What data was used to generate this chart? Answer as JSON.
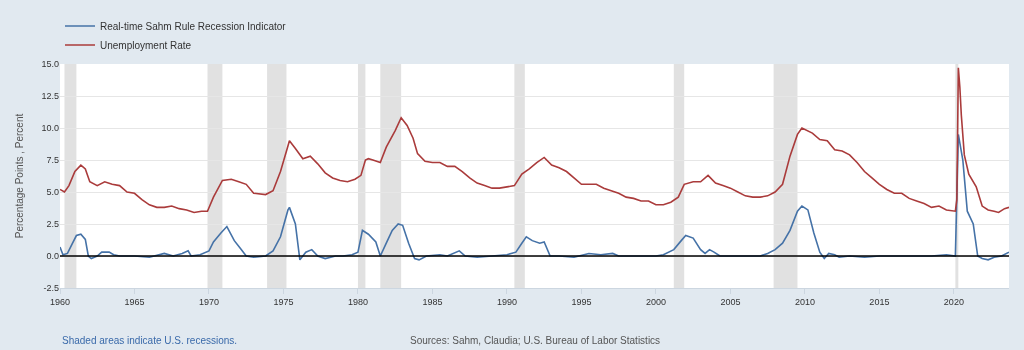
{
  "chart_data": {
    "type": "line",
    "ylabel": "Percentage Points , Percent",
    "xlim": [
      1960,
      2023.7
    ],
    "xticks": [
      1960,
      1965,
      1970,
      1975,
      1980,
      1985,
      1990,
      1995,
      2000,
      2005,
      2010,
      2015,
      2020
    ],
    "ylim": [
      -2.5,
      15
    ],
    "yticks": [
      {
        "value": -2.5,
        "label": "-2.5"
      },
      {
        "value": 0,
        "label": "0.0"
      },
      {
        "value": 2.5,
        "label": "2.5"
      },
      {
        "value": 5,
        "label": "5.0"
      },
      {
        "value": 7.5,
        "label": "7.5"
      },
      {
        "value": 10,
        "label": "10.0"
      },
      {
        "value": 12.5,
        "label": "12.5"
      },
      {
        "value": 15,
        "label": "15.0"
      }
    ],
    "grid": "y",
    "legend": "top left",
    "marker": "none",
    "line_style": "solid",
    "series": [
      {
        "name": "Real-time Sahm Rule Recession Indicator",
        "color": "#4572a7",
        "x": [
          1960.0,
          1960.2,
          1960.5,
          1960.8,
          1961.1,
          1961.4,
          1961.7,
          1961.9,
          1962.1,
          1962.5,
          1962.8,
          1963.3,
          1963.6,
          1964.0,
          1965.0,
          1966.0,
          1967.0,
          1967.6,
          1968.2,
          1968.6,
          1968.8,
          1969.4,
          1970.0,
          1970.3,
          1970.8,
          1971.2,
          1971.7,
          1972.1,
          1972.5,
          1973.0,
          1973.8,
          1974.3,
          1974.8,
          1975.3,
          1975.4,
          1975.8,
          1976.1,
          1976.5,
          1976.9,
          1977.3,
          1977.8,
          1978.5,
          1979.0,
          1979.6,
          1980.0,
          1980.3,
          1980.7,
          1981.2,
          1981.5,
          1981.9,
          1982.3,
          1982.7,
          1983.0,
          1983.4,
          1983.8,
          1984.1,
          1984.6,
          1985.5,
          1986.0,
          1986.8,
          1987.2,
          1988.0,
          1989.0,
          1990.0,
          1990.6,
          1991.0,
          1991.3,
          1991.7,
          1992.2,
          1992.5,
          1992.9,
          1993.5,
          1994.5,
          1995.5,
          1996.3,
          1997.1,
          1997.5,
          1999.0,
          2000.0,
          2000.5,
          2001.2,
          2001.7,
          2002.0,
          2002.5,
          2003.0,
          2003.3,
          2003.6,
          2003.9,
          2004.3,
          2005.0,
          2006.0,
          2007.0,
          2007.5,
          2008.0,
          2008.5,
          2009.0,
          2009.5,
          2009.8,
          2010.2,
          2010.6,
          2011.0,
          2011.3,
          2011.6,
          2012.0,
          2012.3,
          2013.0,
          2014.0,
          2015.0,
          2016.5,
          2017.5,
          2018.5,
          2019.5,
          2020.1,
          2020.3,
          2020.6,
          2020.9,
          2021.3,
          2021.6,
          2021.9,
          2022.3,
          2022.7,
          2023.2,
          2023.7
        ],
        "values": [
          0.7,
          0.1,
          0.2,
          0.9,
          1.6,
          1.7,
          1.3,
          0.0,
          -0.2,
          0.0,
          0.3,
          0.3,
          0.1,
          0.0,
          0.0,
          -0.1,
          0.2,
          0.0,
          0.2,
          0.4,
          0.0,
          0.1,
          0.4,
          1.1,
          1.8,
          2.3,
          1.2,
          0.6,
          0.0,
          -0.1,
          0.0,
          0.4,
          1.5,
          3.6,
          3.8,
          2.5,
          -0.3,
          0.3,
          0.5,
          0.0,
          -0.2,
          0.0,
          0.0,
          0.1,
          0.3,
          2.0,
          1.7,
          1.1,
          0.0,
          1.0,
          2.0,
          2.5,
          2.4,
          1.0,
          -0.2,
          -0.3,
          0.0,
          0.1,
          0.0,
          0.4,
          0.0,
          -0.1,
          0.0,
          0.1,
          0.3,
          1.0,
          1.5,
          1.2,
          1.0,
          1.1,
          0.0,
          0.0,
          -0.1,
          0.2,
          0.1,
          0.2,
          0.0,
          0.0,
          0.0,
          0.1,
          0.5,
          1.2,
          1.6,
          1.4,
          0.5,
          0.2,
          0.5,
          0.3,
          0.0,
          0.0,
          0.0,
          0.0,
          0.2,
          0.5,
          1.0,
          2.0,
          3.5,
          3.9,
          3.6,
          1.8,
          0.3,
          -0.2,
          0.2,
          0.1,
          -0.1,
          0.0,
          -0.1,
          0.0,
          0.0,
          0.0,
          0.0,
          0.1,
          0.0,
          9.5,
          7.5,
          3.5,
          2.5,
          0.0,
          -0.2,
          -0.3,
          -0.1,
          0.0,
          0.3
        ]
      },
      {
        "name": "Unemployment Rate",
        "color": "#aa3b3b",
        "x": [
          1960.0,
          1960.3,
          1960.6,
          1961.0,
          1961.4,
          1961.7,
          1962.0,
          1962.5,
          1963.0,
          1963.5,
          1964.0,
          1964.5,
          1965.0,
          1965.5,
          1966.0,
          1966.5,
          1967.0,
          1967.5,
          1968.0,
          1968.5,
          1969.0,
          1969.5,
          1969.9,
          1970.3,
          1970.9,
          1971.5,
          1972.0,
          1972.5,
          1973.0,
          1973.8,
          1974.3,
          1974.8,
          1975.3,
          1975.4,
          1975.8,
          1976.3,
          1976.8,
          1977.3,
          1977.8,
          1978.3,
          1978.8,
          1979.3,
          1979.8,
          1980.2,
          1980.5,
          1980.7,
          1981.0,
          1981.5,
          1981.9,
          1982.5,
          1982.9,
          1983.3,
          1983.7,
          1984.0,
          1984.5,
          1985.0,
          1985.5,
          1986.0,
          1986.5,
          1987.0,
          1987.5,
          1988.0,
          1988.5,
          1989.0,
          1989.5,
          1990.0,
          1990.5,
          1991.0,
          1991.5,
          1992.0,
          1992.5,
          1993.0,
          1993.5,
          1994.0,
          1994.5,
          1995.0,
          1995.5,
          1996.0,
          1996.5,
          1997.0,
          1997.5,
          1998.0,
          1998.5,
          1999.0,
          1999.5,
          2000.0,
          2000.5,
          2001.0,
          2001.5,
          2001.9,
          2002.5,
          2003.0,
          2003.5,
          2004.0,
          2004.5,
          2005.0,
          2005.5,
          2006.0,
          2006.5,
          2007.0,
          2007.5,
          2008.0,
          2008.5,
          2009.0,
          2009.5,
          2009.8,
          2010.5,
          2011.0,
          2011.5,
          2012.0,
          2012.5,
          2013.0,
          2013.5,
          2014.0,
          2014.5,
          2015.0,
          2015.5,
          2016.0,
          2016.5,
          2017.0,
          2017.5,
          2018.0,
          2018.5,
          2019.0,
          2019.5,
          2020.1,
          2020.2,
          2020.3,
          2020.4,
          2020.5,
          2020.7,
          2021.0,
          2021.5,
          2021.9,
          2022.3,
          2022.7,
          2023.0,
          2023.4,
          2023.7
        ],
        "values": [
          5.2,
          5.0,
          5.5,
          6.6,
          7.1,
          6.8,
          5.8,
          5.5,
          5.8,
          5.6,
          5.5,
          5.0,
          4.9,
          4.4,
          4.0,
          3.8,
          3.8,
          3.9,
          3.7,
          3.6,
          3.4,
          3.5,
          3.5,
          4.6,
          5.9,
          6.0,
          5.8,
          5.6,
          4.9,
          4.8,
          5.1,
          6.6,
          8.6,
          9.0,
          8.4,
          7.6,
          7.8,
          7.2,
          6.5,
          6.1,
          5.9,
          5.8,
          6.0,
          6.3,
          7.5,
          7.6,
          7.5,
          7.3,
          8.5,
          9.8,
          10.8,
          10.2,
          9.2,
          8.0,
          7.4,
          7.3,
          7.3,
          7.0,
          7.0,
          6.6,
          6.1,
          5.7,
          5.5,
          5.3,
          5.3,
          5.4,
          5.5,
          6.4,
          6.8,
          7.3,
          7.7,
          7.1,
          6.9,
          6.6,
          6.1,
          5.6,
          5.6,
          5.6,
          5.3,
          5.1,
          4.9,
          4.6,
          4.5,
          4.3,
          4.3,
          4.0,
          4.0,
          4.2,
          4.6,
          5.6,
          5.8,
          5.8,
          6.3,
          5.7,
          5.5,
          5.3,
          5.0,
          4.7,
          4.6,
          4.6,
          4.7,
          5.0,
          5.6,
          7.8,
          9.5,
          10.0,
          9.6,
          9.1,
          9.0,
          8.3,
          8.2,
          7.9,
          7.3,
          6.6,
          6.1,
          5.6,
          5.2,
          4.9,
          4.9,
          4.5,
          4.3,
          4.1,
          3.8,
          3.9,
          3.6,
          3.5,
          4.4,
          14.7,
          13.2,
          11.0,
          7.9,
          6.4,
          5.4,
          3.9,
          3.6,
          3.5,
          3.4,
          3.7,
          3.8
        ]
      }
    ],
    "ref_lines": [
      {
        "axis": "y",
        "value": 0,
        "color": "#000000",
        "line_style": "solid"
      }
    ],
    "bands": [
      {
        "axis": "x",
        "from": 1960.3,
        "to": 1961.1,
        "color": "#e1e1e1"
      },
      {
        "axis": "x",
        "from": 1969.9,
        "to": 1970.9,
        "color": "#e1e1e1"
      },
      {
        "axis": "x",
        "from": 1973.9,
        "to": 1975.2,
        "color": "#e1e1e1"
      },
      {
        "axis": "x",
        "from": 1980.0,
        "to": 1980.5,
        "color": "#e1e1e1"
      },
      {
        "axis": "x",
        "from": 1981.5,
        "to": 1982.9,
        "color": "#e1e1e1"
      },
      {
        "axis": "x",
        "from": 1990.5,
        "to": 1991.2,
        "color": "#e1e1e1"
      },
      {
        "axis": "x",
        "from": 2001.2,
        "to": 2001.9,
        "color": "#e1e1e1"
      },
      {
        "axis": "x",
        "from": 2007.9,
        "to": 2009.5,
        "color": "#e1e1e1"
      },
      {
        "axis": "x",
        "from": 2020.1,
        "to": 2020.3,
        "color": "#e1e1e1"
      }
    ],
    "annotations": [
      "Shaded areas indicate U.S. recessions.",
      "Sources: Sahm, Claudia; U.S. Bureau of Labor Statistics"
    ]
  }
}
